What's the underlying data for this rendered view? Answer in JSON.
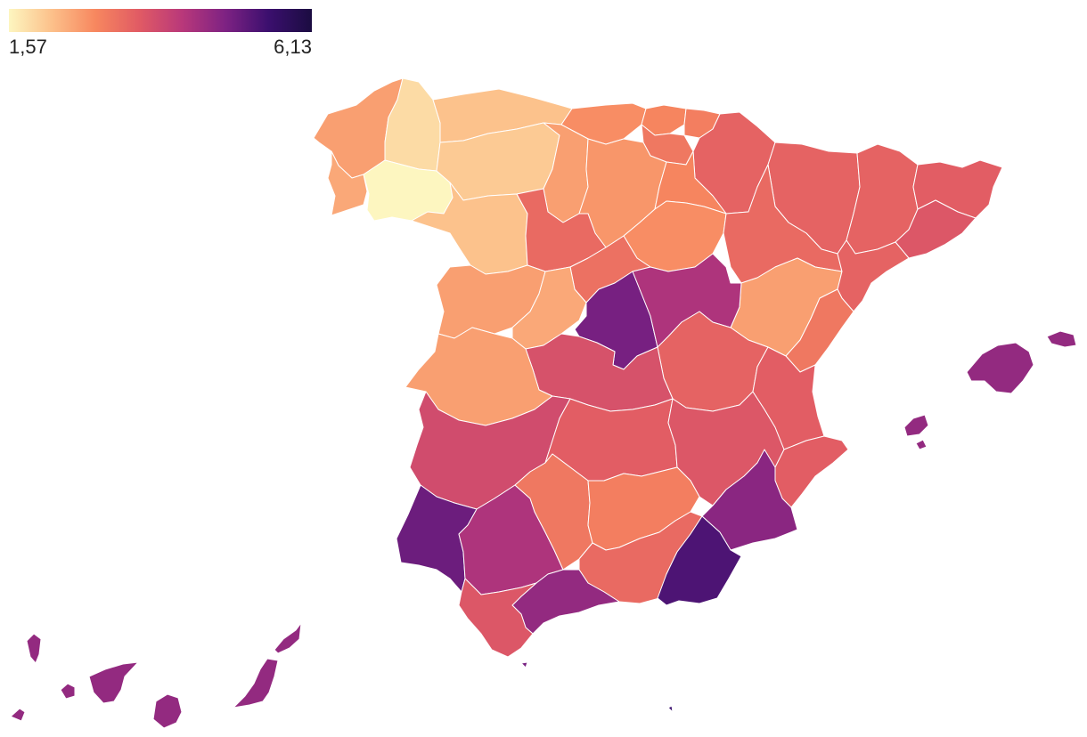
{
  "legend": {
    "min_label": "1,57",
    "max_label": "6,13",
    "min": 1.57,
    "max": 6.13,
    "colors": [
      "#fdf6c0",
      "#fcc08a",
      "#f7875f",
      "#e15b64",
      "#b9387a",
      "#7e2283",
      "#3b0f6e",
      "#1b0c41"
    ]
  },
  "regions": [
    {
      "id": "a-coruna",
      "value": 2.6
    },
    {
      "id": "lugo",
      "value": 1.9
    },
    {
      "id": "pontevedra",
      "value": 2.5
    },
    {
      "id": "ourense",
      "value": 1.57
    },
    {
      "id": "asturias",
      "value": 2.2
    },
    {
      "id": "cantabria",
      "value": 2.8
    },
    {
      "id": "vizcaya",
      "value": 2.9
    },
    {
      "id": "guipuzcoa",
      "value": 3.0
    },
    {
      "id": "alava",
      "value": 3.1
    },
    {
      "id": "navarra",
      "value": 3.4
    },
    {
      "id": "leon",
      "value": 2.1
    },
    {
      "id": "palencia",
      "value": 2.6
    },
    {
      "id": "burgos",
      "value": 2.7
    },
    {
      "id": "la-rioja",
      "value": 2.9
    },
    {
      "id": "zamora",
      "value": 2.2
    },
    {
      "id": "valladolid",
      "value": 3.3
    },
    {
      "id": "soria",
      "value": 2.8
    },
    {
      "id": "segovia",
      "value": 3.2
    },
    {
      "id": "salamanca",
      "value": 2.6
    },
    {
      "id": "avila",
      "value": 2.5
    },
    {
      "id": "huesca",
      "value": 3.4
    },
    {
      "id": "zaragoza",
      "value": 3.3
    },
    {
      "id": "teruel",
      "value": 2.6
    },
    {
      "id": "lleida",
      "value": 3.4
    },
    {
      "id": "girona",
      "value": 3.5
    },
    {
      "id": "barcelona",
      "value": 3.6
    },
    {
      "id": "tarragona",
      "value": 3.4
    },
    {
      "id": "madrid",
      "value": 4.9
    },
    {
      "id": "guadalajara",
      "value": 4.3
    },
    {
      "id": "cuenca",
      "value": 3.4
    },
    {
      "id": "toledo",
      "value": 3.7
    },
    {
      "id": "caceres",
      "value": 2.6
    },
    {
      "id": "badajoz",
      "value": 3.8
    },
    {
      "id": "ciudad-real",
      "value": 3.5
    },
    {
      "id": "albacete",
      "value": 3.6
    },
    {
      "id": "castellon",
      "value": 3.1
    },
    {
      "id": "valencia",
      "value": 3.5
    },
    {
      "id": "alicante",
      "value": 3.5
    },
    {
      "id": "murcia",
      "value": 4.7
    },
    {
      "id": "huelva",
      "value": 5.0
    },
    {
      "id": "sevilla",
      "value": 4.3
    },
    {
      "id": "cordoba",
      "value": 3.1
    },
    {
      "id": "jaen",
      "value": 3.0
    },
    {
      "id": "granada",
      "value": 3.3
    },
    {
      "id": "almeria",
      "value": 5.3
    },
    {
      "id": "malaga",
      "value": 4.6
    },
    {
      "id": "cadiz",
      "value": 3.6
    },
    {
      "id": "mallorca",
      "value": 4.6
    },
    {
      "id": "menorca",
      "value": 4.6
    },
    {
      "id": "ibiza",
      "value": 4.6
    },
    {
      "id": "formentera",
      "value": 4.6
    },
    {
      "id": "la-palma",
      "value": 4.6
    },
    {
      "id": "la-gomera",
      "value": 4.6
    },
    {
      "id": "el-hierro",
      "value": 4.6
    },
    {
      "id": "tenerife",
      "value": 4.6
    },
    {
      "id": "gran-canaria",
      "value": 4.6
    },
    {
      "id": "fuerteventura",
      "value": 4.6
    },
    {
      "id": "lanzarote",
      "value": 4.6
    },
    {
      "id": "ceuta",
      "value": 4.9
    },
    {
      "id": "melilla",
      "value": 5.5
    }
  ]
}
